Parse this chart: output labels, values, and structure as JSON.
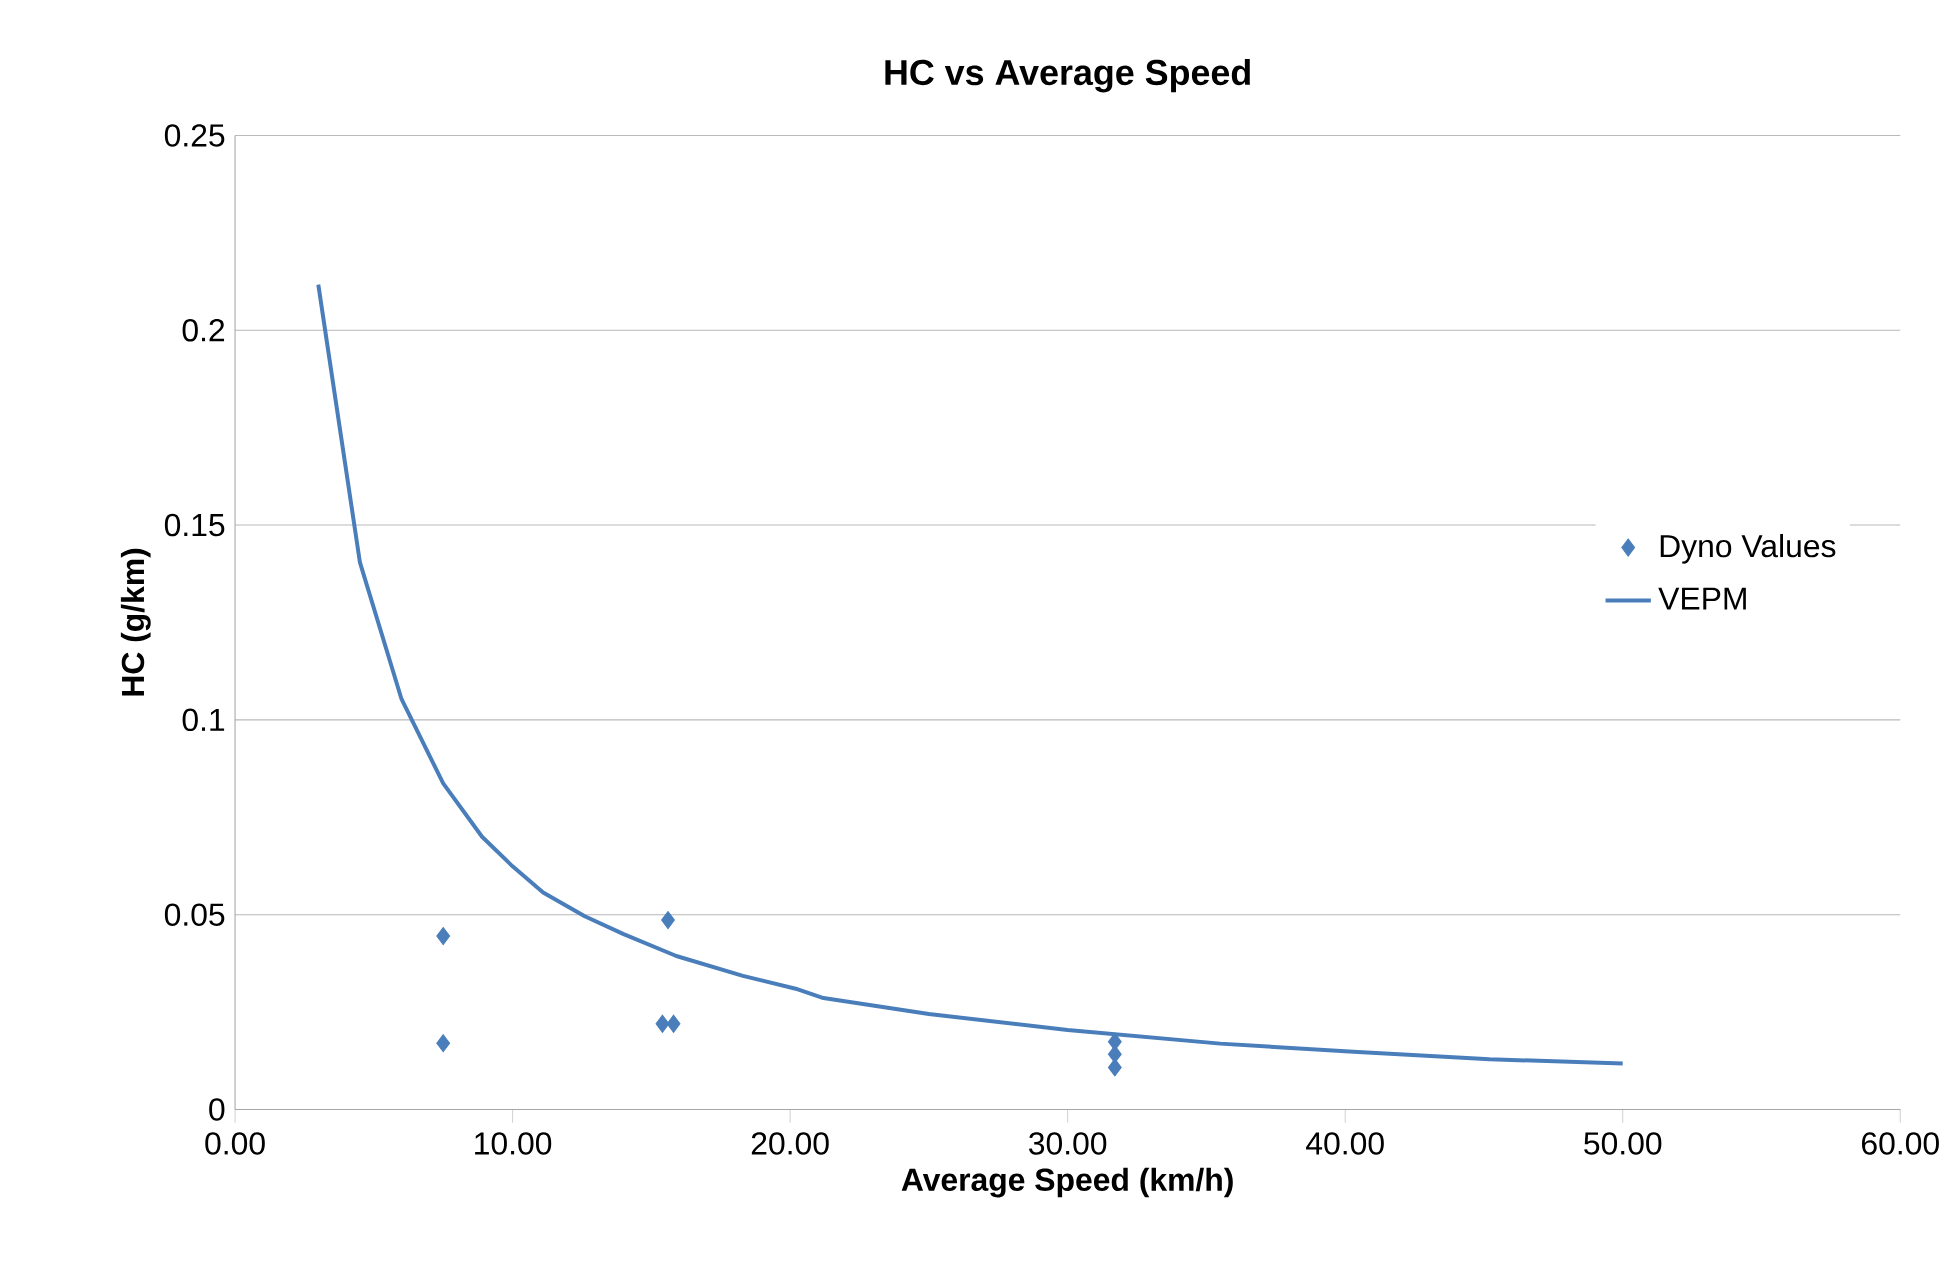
{
  "chart_data": {
    "type": "scatter",
    "title": "HC vs Average Speed",
    "xlabel": "Average Speed (km/h)",
    "ylabel": "HC (g/km)",
    "xlim": [
      0,
      60
    ],
    "ylim": [
      0,
      0.25
    ],
    "xticks": [
      {
        "value": 0,
        "label": "0.00"
      },
      {
        "value": 10,
        "label": "10.00"
      },
      {
        "value": 20,
        "label": "20.00"
      },
      {
        "value": 30,
        "label": "30.00"
      },
      {
        "value": 40,
        "label": "40.00"
      },
      {
        "value": 50,
        "label": "50.00"
      },
      {
        "value": 60,
        "label": "60.00"
      }
    ],
    "yticks": [
      0,
      0.05,
      0.1,
      0.15,
      0.2,
      0.25
    ],
    "grid": "y",
    "legend": "right",
    "series": [
      {
        "name": "Dyno Values",
        "marker": "diamond",
        "color": "#4a7ebb",
        "x": [
          7.5,
          7.5,
          15.6,
          15.4,
          15.8,
          31.7,
          31.7,
          31.7
        ],
        "values": [
          0.0445,
          0.017,
          0.0486,
          0.022,
          0.022,
          0.0174,
          0.0142,
          0.0108
        ]
      },
      {
        "name": "VEPM",
        "type": "line",
        "marker": "none",
        "line_style": "solid",
        "color": "#4a7ebb",
        "x": [
          3,
          4.5,
          6,
          7.5,
          8.9,
          10,
          11.1,
          12.6,
          14,
          15.9,
          18.3,
          20.2,
          21.2,
          25,
          30,
          35.5,
          40.3,
          45.2,
          50
        ],
        "values": [
          0.2117,
          0.1404,
          0.1053,
          0.0837,
          0.07,
          0.0624,
          0.0557,
          0.0496,
          0.045,
          0.0394,
          0.0343,
          0.031,
          0.0286,
          0.0245,
          0.0204,
          0.0169,
          0.0148,
          0.0129,
          0.0118
        ]
      }
    ]
  }
}
